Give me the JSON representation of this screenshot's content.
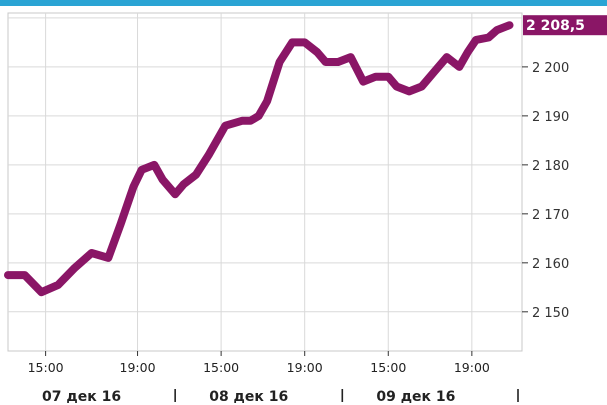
{
  "chart_data": {
    "type": "line",
    "series": [
      {
        "color": "#8a1666",
        "x": [
          0,
          0.2,
          0.4,
          0.6,
          0.8,
          1.0,
          1.2,
          1.35,
          1.5,
          1.6,
          1.75,
          1.85,
          2.0,
          2.1,
          2.25,
          2.4,
          2.6,
          2.8,
          2.9,
          3.0,
          3.1,
          3.25,
          3.4,
          3.55,
          3.7,
          3.8,
          3.95,
          4.1,
          4.25,
          4.4,
          4.55,
          4.65,
          4.8,
          4.95,
          5.1,
          5.25,
          5.4,
          5.5,
          5.6,
          5.75,
          5.85,
          6.0
        ],
        "values": [
          2157.5,
          2157.5,
          2154,
          2155.5,
          2159,
          2162,
          2161,
          2168,
          2175.5,
          2179,
          2180,
          2177,
          2174,
          2176,
          2178,
          2182,
          2188,
          2189,
          2189,
          2190,
          2193,
          2201,
          2205,
          2205,
          2203,
          2201,
          2201,
          2202,
          2197,
          2198,
          2198,
          2196,
          2195,
          2196,
          2199,
          2202,
          2200,
          2203,
          2205.5,
          2206,
          2207.5,
          2208.5
        ]
      }
    ],
    "ylim": [
      2142,
      2211
    ],
    "yticks": [
      "2 150",
      "2 160",
      "2 170",
      "2 180",
      "2 190",
      "2 200"
    ],
    "ytick_values": [
      2150,
      2160,
      2170,
      2180,
      2190,
      2200
    ],
    "xticks": [
      "15:00",
      "19:00",
      "15:00",
      "19:00",
      "15:00",
      "19:00"
    ],
    "xtick_positions": [
      0.45,
      1.55,
      2.55,
      3.55,
      4.55,
      5.55
    ],
    "date_labels": [
      "07 дек 16",
      "08 дек 16",
      "09 дек 16"
    ],
    "last_value_label": "2 208,5",
    "last_value": 2208.5,
    "grid": true
  }
}
